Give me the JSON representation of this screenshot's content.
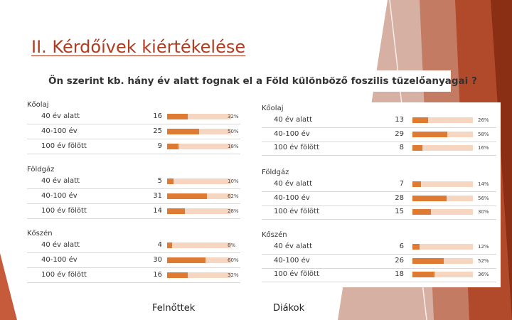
{
  "slide": {
    "title": "II. Kérdőívek kiértékelése",
    "question": "Ön szerint kb. hány év alatt fognak el a Föld különböző foszilis tüzelőanyagai ?"
  },
  "colors": {
    "accent": "#b23a1e",
    "bar_fill": "#df7a32",
    "bar_track": "#f6d5c1"
  },
  "chart_data": [
    {
      "type": "bar",
      "caption": "Felnőttek",
      "groups": [
        {
          "name": "Kőolaj",
          "categories": [
            "40 év alatt",
            "40-100 év",
            "100 év fölött"
          ],
          "counts": [
            16,
            25,
            9
          ],
          "percent_labels": [
            "32%",
            "50%",
            "18%"
          ],
          "percents": [
            32,
            50,
            18
          ]
        },
        {
          "name": "Földgáz",
          "categories": [
            "40 év alatt",
            "40-100 év",
            "100 év fölött"
          ],
          "counts": [
            5,
            31,
            14
          ],
          "percent_labels": [
            "10%",
            "62%",
            "28%"
          ],
          "percents": [
            10,
            62,
            28
          ]
        },
        {
          "name": "Kőszén",
          "categories": [
            "40 év alatt",
            "40-100 év",
            "100 év fölött"
          ],
          "counts": [
            4,
            30,
            16
          ],
          "percent_labels": [
            "8%",
            "60%",
            "32%"
          ],
          "percents": [
            8,
            60,
            32
          ]
        }
      ]
    },
    {
      "type": "bar",
      "caption": "Diákok",
      "groups": [
        {
          "name": "Kőolaj",
          "categories": [
            "40 év alatt",
            "40-100 év",
            "100 év fölött"
          ],
          "counts": [
            13,
            29,
            8
          ],
          "percent_labels": [
            "26%",
            "58%",
            "16%"
          ],
          "percents": [
            26,
            58,
            16
          ]
        },
        {
          "name": "Földgáz",
          "categories": [
            "40 év alatt",
            "40-100 év",
            "100 év fölött"
          ],
          "counts": [
            7,
            28,
            15
          ],
          "percent_labels": [
            "14%",
            "56%",
            "30%"
          ],
          "percents": [
            14,
            56,
            30
          ]
        },
        {
          "name": "Kőszén",
          "categories": [
            "40 év alatt",
            "40-100 év",
            "100 év fölött"
          ],
          "counts": [
            6,
            26,
            18
          ],
          "percent_labels": [
            "12%",
            "52%",
            "36%"
          ],
          "percents": [
            12,
            52,
            36
          ]
        }
      ]
    }
  ]
}
